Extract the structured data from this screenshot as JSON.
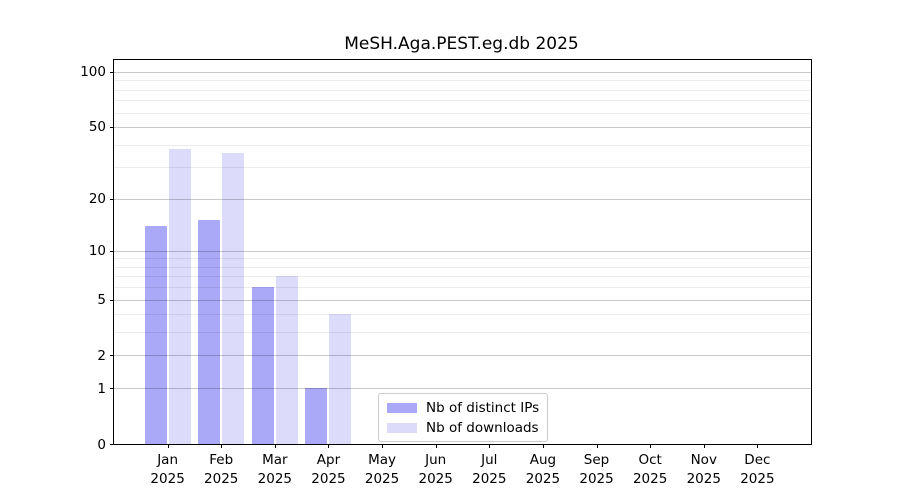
{
  "chart_data": {
    "type": "bar",
    "title": "MeSH.Aga.PEST.eg.db 2025",
    "categories": [
      "Jan 2025",
      "Feb 2025",
      "Mar 2025",
      "Apr 2025",
      "May 2025",
      "Jun 2025",
      "Jul 2025",
      "Aug 2025",
      "Sep 2025",
      "Oct 2025",
      "Nov 2025",
      "Dec 2025"
    ],
    "series": [
      {
        "name": "Nb of distinct IPs",
        "color": "#a9a9f8",
        "values": [
          14,
          15,
          6,
          1,
          0,
          0,
          0,
          0,
          0,
          0,
          0,
          0
        ]
      },
      {
        "name": "Nb of downloads",
        "color": "#dcdcfa",
        "values": [
          38,
          36,
          7,
          4,
          0,
          0,
          0,
          0,
          0,
          0,
          0,
          0
        ]
      }
    ],
    "xlabel": "",
    "ylabel": "",
    "yscale": "log1p",
    "ylim": [
      0,
      116
    ],
    "y_major_ticks": [
      0,
      1,
      2,
      5,
      10,
      20,
      50,
      100
    ],
    "y_minor_ticks": [
      3,
      4,
      6,
      7,
      8,
      9,
      30,
      40,
      60,
      70,
      80,
      90
    ],
    "grid": "on, drawn over bars",
    "legend_position": "lower center",
    "colors": {
      "background": "#ffffff",
      "axis": "#000000",
      "major_grid": "#c9c9c9",
      "minor_grid": "#ececec",
      "text": "#000000"
    }
  }
}
